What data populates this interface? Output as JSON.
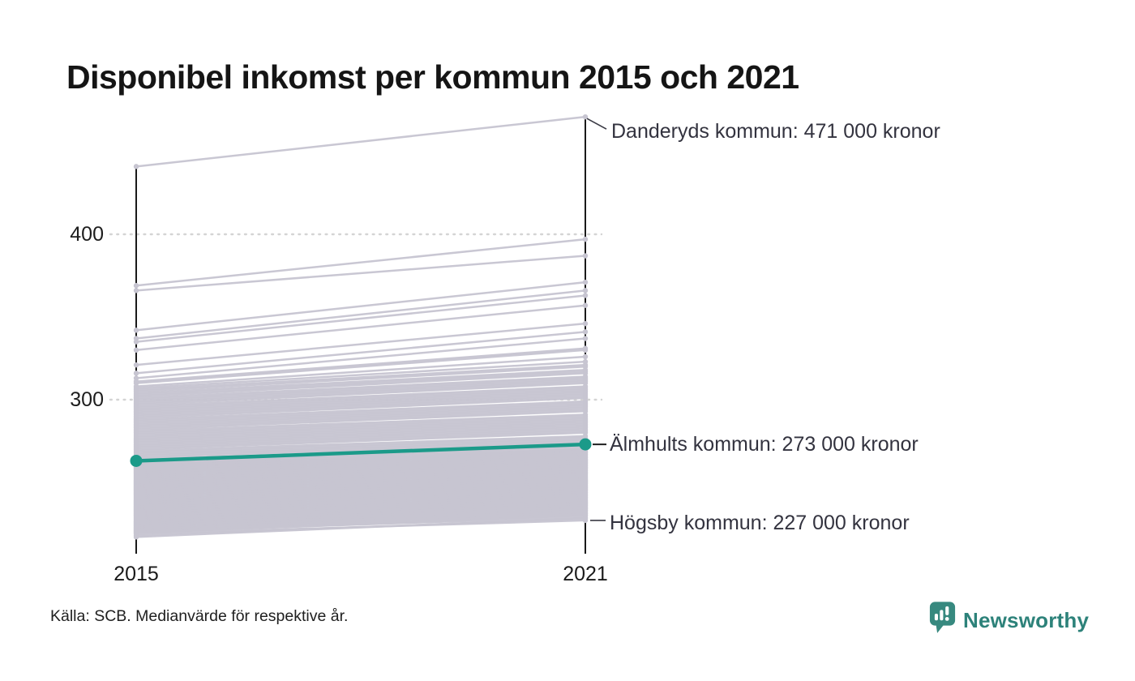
{
  "title": "Disponibel inkomst per kommun 2015 och 2021",
  "source": "Källa: SCB. Medianvärde för respektive år.",
  "logo": {
    "brand": "Newsworthy",
    "icon": "newsworthy-barchart-pin-icon",
    "color": "#2d827a"
  },
  "chart_data": {
    "type": "line",
    "subtype": "slopegraph",
    "title": "Disponibel inkomst per kommun 2015 och 2021",
    "x_categories": [
      "2015",
      "2021"
    ],
    "y_ticks": [
      400,
      300
    ],
    "ylim": [
      210,
      480
    ],
    "unit_hint": "tusen kronor",
    "grid": "dotted-horizontal",
    "legend": "none",
    "colors": {
      "line": "#c7c5d1",
      "highlight": "#1b9a89",
      "axis": "#1a1a1a",
      "grid": "#d4d4d4",
      "leader": "#3a3a44"
    },
    "highlight": {
      "name": "Älmhults kommun",
      "values": [
        263,
        273
      ]
    },
    "annotations": [
      {
        "name": "Danderyds kommun",
        "value": 471,
        "label": "Danderyds kommun: 471 000 kronor"
      },
      {
        "name": "Älmhults kommun",
        "value": 273,
        "label": "Älmhults kommun: 273 000 kronor"
      },
      {
        "name": "Högsby kommun",
        "value": 227,
        "label": "Högsby kommun: 227 000 kronor"
      }
    ],
    "series": [
      [
        441,
        471
      ],
      [
        369,
        397
      ],
      [
        366,
        387
      ],
      [
        342,
        371
      ],
      [
        337,
        366
      ],
      [
        335,
        363
      ],
      [
        330,
        357
      ],
      [
        321,
        346
      ],
      [
        316,
        341
      ],
      [
        313,
        337
      ],
      [
        311,
        331
      ],
      [
        310,
        330
      ],
      [
        308,
        326
      ],
      [
        307,
        323
      ],
      [
        306,
        321
      ],
      [
        305,
        320
      ],
      [
        304,
        318
      ],
      [
        303,
        317
      ],
      [
        302,
        316
      ],
      [
        301,
        314
      ],
      [
        300,
        313
      ],
      [
        299,
        312
      ],
      [
        298,
        311
      ],
      [
        297,
        310
      ],
      [
        296,
        308
      ],
      [
        295,
        307
      ],
      [
        294,
        306
      ],
      [
        293,
        305
      ],
      [
        292,
        304
      ],
      [
        291,
        303
      ],
      [
        290,
        302
      ],
      [
        289,
        301
      ],
      [
        288,
        299
      ],
      [
        287,
        298
      ],
      [
        286,
        297
      ],
      [
        285,
        296
      ],
      [
        284,
        295
      ],
      [
        283,
        294
      ],
      [
        282,
        293
      ],
      [
        281,
        291
      ],
      [
        280,
        290
      ],
      [
        279,
        289
      ],
      [
        278,
        288
      ],
      [
        277,
        287
      ],
      [
        276,
        286
      ],
      [
        275,
        285
      ],
      [
        274,
        284
      ],
      [
        273,
        283
      ],
      [
        272,
        282
      ],
      [
        271,
        281
      ],
      [
        270,
        280
      ],
      [
        269,
        278
      ],
      [
        268,
        277
      ],
      [
        267,
        276
      ],
      [
        266,
        275
      ],
      [
        265,
        274
      ],
      [
        264,
        272
      ],
      [
        262,
        272
      ],
      [
        261.5,
        271
      ],
      [
        261,
        270
      ],
      [
        260.5,
        272
      ],
      [
        260,
        269
      ],
      [
        259.5,
        270
      ],
      [
        259,
        268
      ],
      [
        258.5,
        269
      ],
      [
        258,
        267
      ],
      [
        257.5,
        268
      ],
      [
        257,
        266
      ],
      [
        256.5,
        267
      ],
      [
        256,
        265
      ],
      [
        255.5,
        266
      ],
      [
        255,
        264
      ],
      [
        254.5,
        265
      ],
      [
        254,
        263
      ],
      [
        253.5,
        264
      ],
      [
        253,
        262
      ],
      [
        252.5,
        263
      ],
      [
        252,
        261
      ],
      [
        251.5,
        262
      ],
      [
        251,
        260
      ],
      [
        250.5,
        261
      ],
      [
        250,
        259
      ],
      [
        249.5,
        260
      ],
      [
        249,
        258
      ],
      [
        248.5,
        259
      ],
      [
        248,
        257
      ],
      [
        247.5,
        258
      ],
      [
        247,
        256
      ],
      [
        246.5,
        257
      ],
      [
        246,
        255
      ],
      [
        245.5,
        256
      ],
      [
        245,
        254
      ],
      [
        244.5,
        255
      ],
      [
        244,
        253
      ],
      [
        243.5,
        254
      ],
      [
        243,
        252
      ],
      [
        242.5,
        253
      ],
      [
        242,
        251
      ],
      [
        241.5,
        252
      ],
      [
        241,
        250
      ],
      [
        240.5,
        251
      ],
      [
        240,
        249
      ],
      [
        239.5,
        250
      ],
      [
        239,
        248
      ],
      [
        238.5,
        249
      ],
      [
        238,
        247
      ],
      [
        237.5,
        248
      ],
      [
        237,
        246
      ],
      [
        236.5,
        247
      ],
      [
        236,
        245
      ],
      [
        235.5,
        246
      ],
      [
        235,
        244
      ],
      [
        234.5,
        245
      ],
      [
        234,
        243
      ],
      [
        233.5,
        244
      ],
      [
        233,
        242
      ],
      [
        232.5,
        243
      ],
      [
        232,
        241
      ],
      [
        231.5,
        242
      ],
      [
        231,
        240
      ],
      [
        230.5,
        241
      ],
      [
        230,
        239
      ],
      [
        229.5,
        240
      ],
      [
        229,
        238
      ],
      [
        228.5,
        239
      ],
      [
        228,
        237
      ],
      [
        227.5,
        238
      ],
      [
        227,
        236
      ],
      [
        226.5,
        237
      ],
      [
        226,
        235
      ],
      [
        225.5,
        236
      ],
      [
        225,
        234
      ],
      [
        224.5,
        235
      ],
      [
        224,
        233
      ],
      [
        223.5,
        234
      ],
      [
        223,
        232
      ],
      [
        222.5,
        233
      ],
      [
        222,
        231
      ],
      [
        221.5,
        232
      ],
      [
        221,
        230
      ],
      [
        220.5,
        231
      ],
      [
        220,
        229
      ],
      [
        219.5,
        230
      ],
      [
        219,
        227
      ],
      [
        218,
        228
      ],
      [
        217,
        228.5
      ]
    ]
  }
}
